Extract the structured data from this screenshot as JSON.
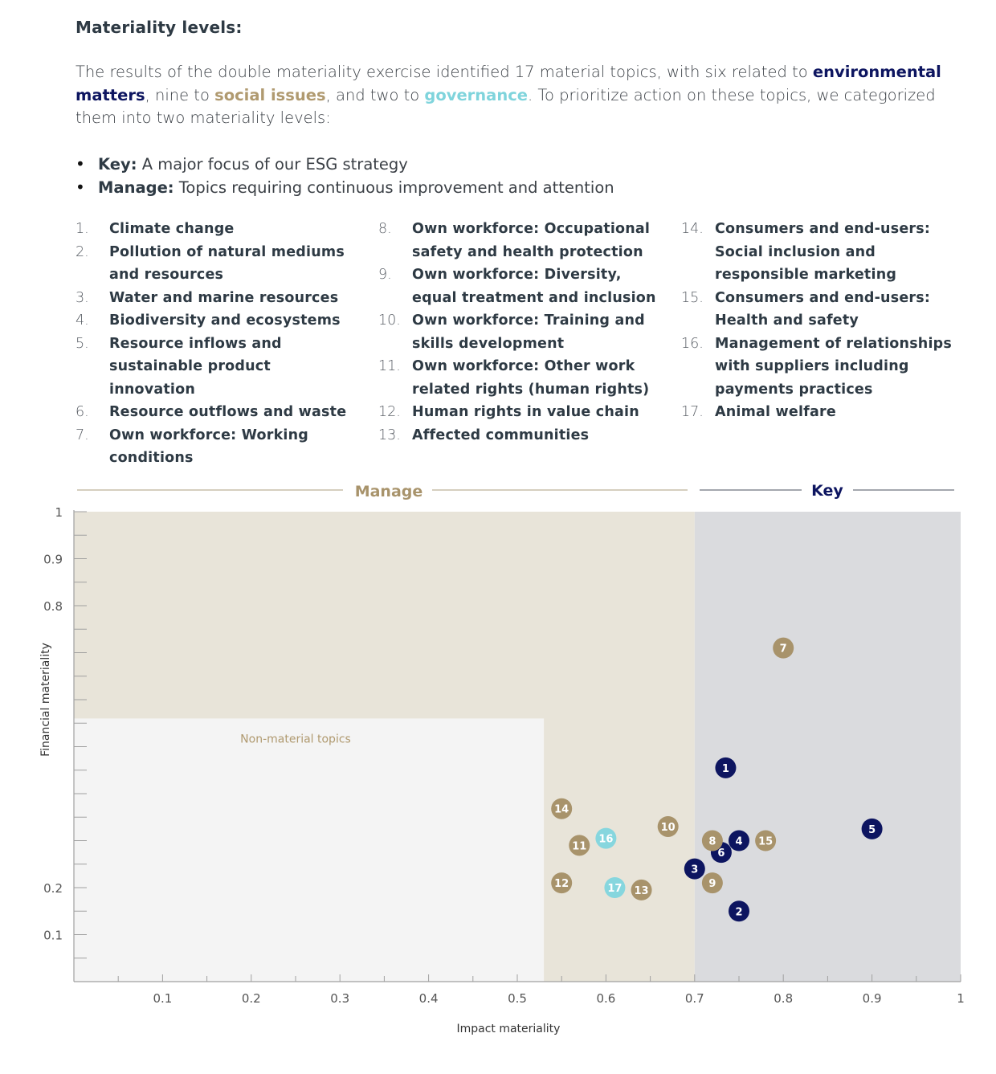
{
  "heading": "Materiality levels:",
  "intro": {
    "part1": "The results of the double materiality exercise identified 17 material topics, with six related to ",
    "env": "environmental matters",
    "part2": ", nine to ",
    "soc": "social issues",
    "part3": ", and two to ",
    "gov": "governance",
    "part4": ". To prioritize action on these topics, we categorized them into two materiality levels:"
  },
  "levels": [
    {
      "label": "Key:",
      "text": " A major focus of our ESG strategy"
    },
    {
      "label": "Manage:",
      "text": " Topics requiring continuous improvement and attention"
    }
  ],
  "topics": [
    [
      {
        "num": "1.",
        "text": "Climate change"
      },
      {
        "num": "2.",
        "text": "Pollution of natural mediums and resources"
      },
      {
        "num": "3.",
        "text": "Water and marine resources"
      },
      {
        "num": "4.",
        "text": "Biodiversity and ecosystems"
      },
      {
        "num": "5.",
        "text": "Resource inflows and sustainable product innovation"
      },
      {
        "num": "6.",
        "text": "Resource outflows and waste"
      },
      {
        "num": "7.",
        "text": "Own workforce:  Working conditions"
      }
    ],
    [
      {
        "num": "8.",
        "text": "Own workforce:  Occupational safety and health protection"
      },
      {
        "num": "9.",
        "text": "Own workforce: Diversity, equal treatment and inclusion"
      },
      {
        "num": "10.",
        "text": "Own workforce: Training and skills development"
      },
      {
        "num": "11.",
        "text": "Own workforce:  Other work related  rights (human rights)"
      },
      {
        "num": "12.",
        "text": "Human rights in value chain"
      },
      {
        "num": "13.",
        "text": "Affected communities"
      }
    ],
    [
      {
        "num": "14.",
        "text": "Consumers and end-users: Social inclusion and responsible marketing"
      },
      {
        "num": "15.",
        "text": "Consumers and end-users: Health and safety"
      },
      {
        "num": "16.",
        "text": "Management of relationships with suppliers including payments practices"
      },
      {
        "num": "17.",
        "text": "Animal welfare"
      }
    ]
  ],
  "colors": {
    "environment": "#0d1560",
    "social": "#a8936b",
    "governance": "#86d6de",
    "manage_zone": "#e8e4d9",
    "key_zone": "#dadbde",
    "non_material_zone": "#f4f4f4"
  },
  "chart_data": {
    "type": "scatter",
    "xlabel": "Impact materiality",
    "ylabel": "Financial materiality",
    "xlim": [
      0,
      1
    ],
    "ylim": [
      0,
      1
    ],
    "x_ticks": [
      0.1,
      0.2,
      0.3,
      0.4,
      0.5,
      0.6,
      0.7,
      0.8,
      0.9,
      1
    ],
    "x_tick_labels": [
      "0.1",
      "0.2",
      "0.3",
      "0.4",
      "0.5",
      "0.6",
      "0.7",
      "0.8",
      "0.9",
      "1"
    ],
    "y_ticks": [
      0.1,
      0.2,
      0.8,
      0.9,
      1
    ],
    "y_tick_labels": [
      "0.1",
      "0.2",
      "0.8",
      "0.9",
      "1"
    ],
    "zones": [
      {
        "name": "Manage",
        "x": [
          0,
          0.7
        ],
        "y": [
          0,
          1
        ]
      },
      {
        "name": "Key",
        "x": [
          0.7,
          1
        ],
        "y": [
          0,
          1
        ]
      },
      {
        "name": "Non-material topics",
        "x": [
          0,
          0.53
        ],
        "y": [
          0,
          0.56
        ]
      }
    ],
    "zone_labels": {
      "manage": "Manage",
      "key": "Key",
      "non_material": "Non-material topics"
    },
    "points": [
      {
        "id": "1",
        "x": 0.735,
        "y": 0.455,
        "group": "environment"
      },
      {
        "id": "2",
        "x": 0.75,
        "y": 0.15,
        "group": "environment"
      },
      {
        "id": "3",
        "x": 0.7,
        "y": 0.24,
        "group": "environment"
      },
      {
        "id": "4",
        "x": 0.75,
        "y": 0.3,
        "group": "environment"
      },
      {
        "id": "5",
        "x": 0.9,
        "y": 0.325,
        "group": "environment"
      },
      {
        "id": "6",
        "x": 0.73,
        "y": 0.275,
        "group": "environment"
      },
      {
        "id": "7",
        "x": 0.8,
        "y": 0.71,
        "group": "social"
      },
      {
        "id": "8",
        "x": 0.72,
        "y": 0.3,
        "group": "social"
      },
      {
        "id": "9",
        "x": 0.72,
        "y": 0.21,
        "group": "social"
      },
      {
        "id": "10",
        "x": 0.67,
        "y": 0.33,
        "group": "social"
      },
      {
        "id": "11",
        "x": 0.57,
        "y": 0.29,
        "group": "social"
      },
      {
        "id": "12",
        "x": 0.55,
        "y": 0.21,
        "group": "social"
      },
      {
        "id": "13",
        "x": 0.64,
        "y": 0.195,
        "group": "social"
      },
      {
        "id": "14",
        "x": 0.55,
        "y": 0.368,
        "group": "social"
      },
      {
        "id": "15",
        "x": 0.78,
        "y": 0.3,
        "group": "social"
      },
      {
        "id": "16",
        "x": 0.6,
        "y": 0.305,
        "group": "governance"
      },
      {
        "id": "17",
        "x": 0.61,
        "y": 0.2,
        "group": "governance"
      }
    ]
  }
}
